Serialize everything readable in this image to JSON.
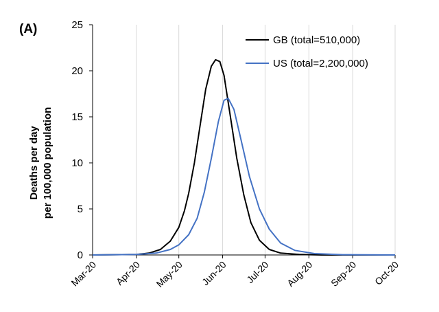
{
  "chart_data": {
    "type": "line",
    "panel_label": "(A)",
    "title": "",
    "xlabel": "",
    "ylabel_lines": [
      "Deaths per day",
      "per 100,000 population"
    ],
    "ylim": [
      0,
      25
    ],
    "y_ticks": [
      0,
      5,
      10,
      15,
      20,
      25
    ],
    "x_ticks": [
      "Mar-20",
      "Apr-20",
      "May-20",
      "Jun-20",
      "Jul-20",
      "Aug-20",
      "Sep-20",
      "Oct-20"
    ],
    "xlim": [
      "2020-03-01",
      "2020-10-01"
    ],
    "grid": {
      "x": true,
      "y": false
    },
    "legend_position": "top-right",
    "series": [
      {
        "name": "GB (total=510,000)",
        "color": "#000000",
        "points": [
          [
            "2020-03-01",
            0
          ],
          [
            "2020-04-01",
            0.05
          ],
          [
            "2020-04-10",
            0.2
          ],
          [
            "2020-04-18",
            0.6
          ],
          [
            "2020-04-25",
            1.5
          ],
          [
            "2020-05-01",
            3.0
          ],
          [
            "2020-05-05",
            4.8
          ],
          [
            "2020-05-08",
            6.7
          ],
          [
            "2020-05-12",
            10.0
          ],
          [
            "2020-05-16",
            14.0
          ],
          [
            "2020-05-20",
            18.0
          ],
          [
            "2020-05-24",
            20.5
          ],
          [
            "2020-05-27",
            21.2
          ],
          [
            "2020-05-30",
            21.0
          ],
          [
            "2020-06-02",
            19.5
          ],
          [
            "2020-06-06",
            15.5
          ],
          [
            "2020-06-11",
            10.5
          ],
          [
            "2020-06-16",
            6.5
          ],
          [
            "2020-06-21",
            3.5
          ],
          [
            "2020-06-27",
            1.6
          ],
          [
            "2020-07-04",
            0.6
          ],
          [
            "2020-07-12",
            0.2
          ],
          [
            "2020-07-25",
            0.05
          ],
          [
            "2020-08-10",
            0
          ],
          [
            "2020-10-01",
            0
          ]
        ]
      },
      {
        "name": "US (total=2,200,000)",
        "color": "#4472c4",
        "points": [
          [
            "2020-03-01",
            0
          ],
          [
            "2020-04-01",
            0.05
          ],
          [
            "2020-04-15",
            0.2
          ],
          [
            "2020-04-25",
            0.6
          ],
          [
            "2020-05-01",
            1.1
          ],
          [
            "2020-05-08",
            2.2
          ],
          [
            "2020-05-14",
            4.0
          ],
          [
            "2020-05-19",
            6.8
          ],
          [
            "2020-05-24",
            10.5
          ],
          [
            "2020-05-29",
            14.5
          ],
          [
            "2020-06-02",
            16.8
          ],
          [
            "2020-06-05",
            17.0
          ],
          [
            "2020-06-09",
            15.8
          ],
          [
            "2020-06-14",
            12.5
          ],
          [
            "2020-06-20",
            8.5
          ],
          [
            "2020-06-27",
            5.0
          ],
          [
            "2020-07-04",
            2.8
          ],
          [
            "2020-07-12",
            1.3
          ],
          [
            "2020-07-22",
            0.5
          ],
          [
            "2020-08-05",
            0.15
          ],
          [
            "2020-08-25",
            0.03
          ],
          [
            "2020-10-01",
            0
          ]
        ]
      }
    ]
  }
}
